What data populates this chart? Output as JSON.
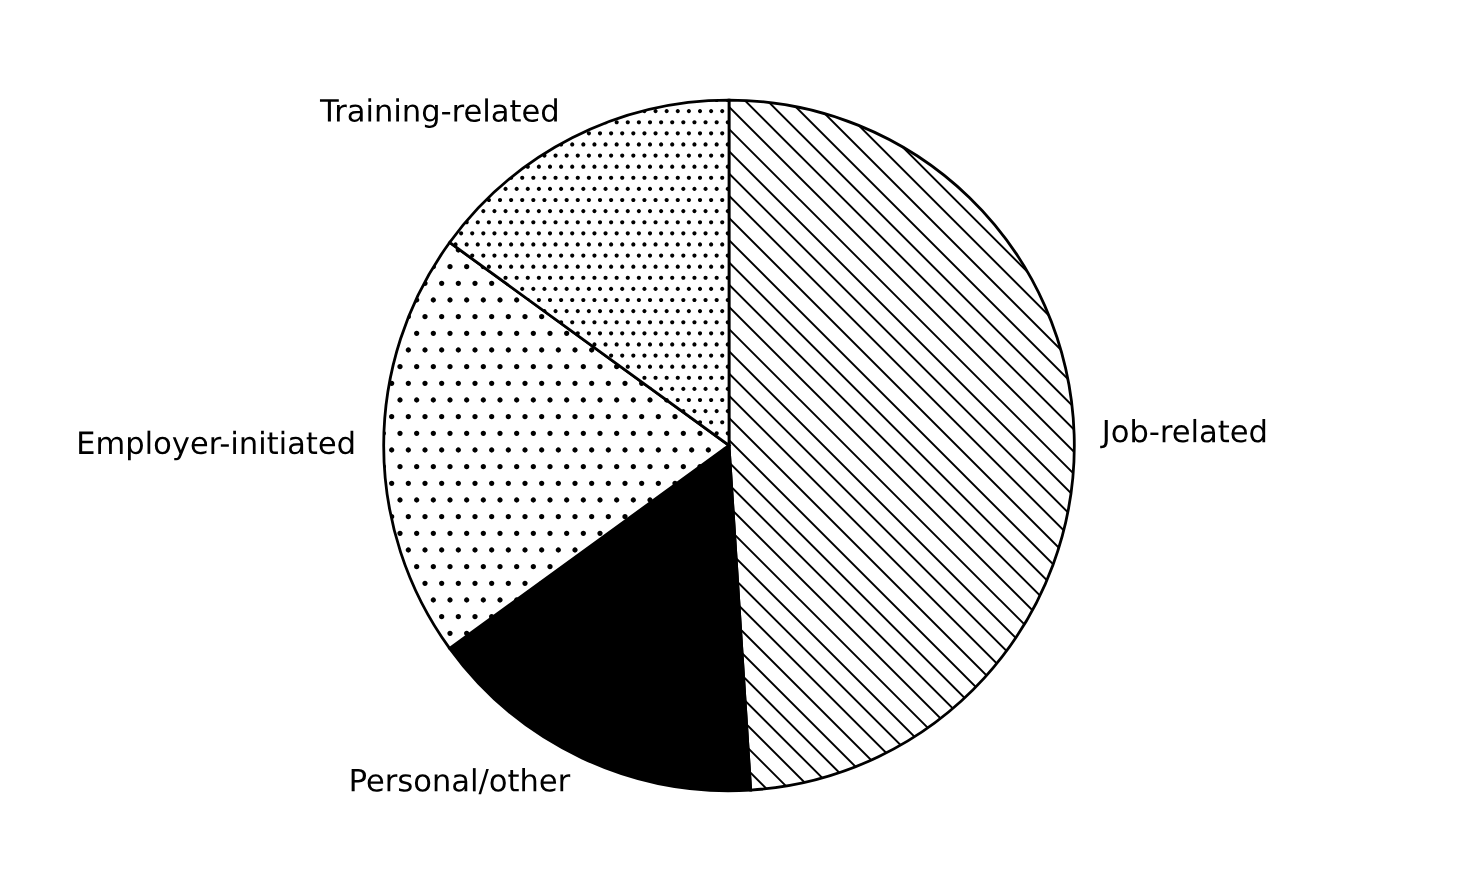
{
  "chart_data": {
    "type": "pie",
    "categories": [
      "Job-related",
      "Personal/other",
      "Employer-initiated",
      "Training-related"
    ],
    "values": [
      49,
      16,
      20,
      15
    ],
    "colors": [
      "#000000",
      "#000000",
      "#000000",
      "#000000"
    ]
  }
}
